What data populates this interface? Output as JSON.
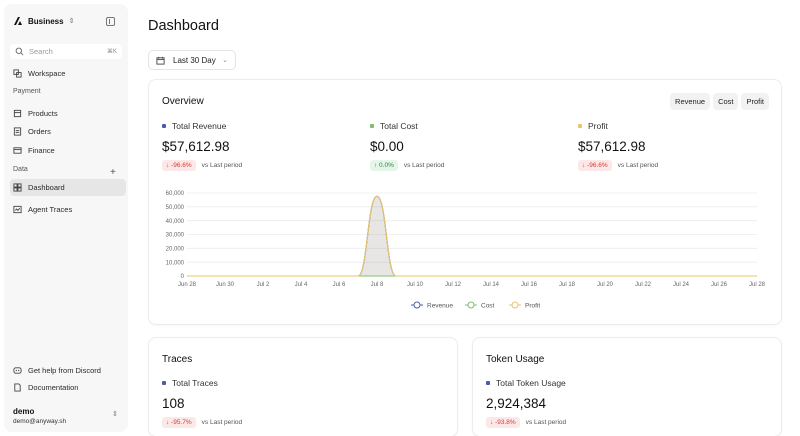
{
  "sidebar": {
    "brand": "Business",
    "search_placeholder": "Search",
    "search_shortcut": "⌘K",
    "workspace": "Workspace",
    "payment_label": "Payment",
    "products": "Products",
    "orders": "Orders",
    "finance": "Finance",
    "data_label": "Data",
    "dashboard": "Dashboard",
    "agent_traces": "Agent Traces",
    "help": "Get help from Discord",
    "docs": "Documentation",
    "user_name": "demo",
    "user_email": "demo@anyway.sh"
  },
  "page": {
    "title": "Dashboard",
    "date_range": "Last 30 Day"
  },
  "overview": {
    "title": "Overview",
    "toggles": [
      "Revenue",
      "Cost",
      "Profit"
    ],
    "metrics": [
      {
        "label": "Total Revenue",
        "value": "$57,612.98",
        "delta": "↓ -96.6%",
        "compare": "vs Last period",
        "color": "#4a5bb0",
        "trend": "down"
      },
      {
        "label": "Total Cost",
        "value": "$0.00",
        "delta": "↑ 0.0%",
        "compare": "vs Last period",
        "color": "#7fbf6a",
        "trend": "up"
      },
      {
        "label": "Profit",
        "value": "$57,612.98",
        "delta": "↓ -96.6%",
        "compare": "vs Last period",
        "color": "#e9c46a",
        "trend": "down"
      }
    ]
  },
  "chart_data": {
    "type": "area",
    "x": [
      "Jun 28",
      "Jun 29",
      "Jun 30",
      "Jul 1",
      "Jul 2",
      "Jul 3",
      "Jul 4",
      "Jul 5",
      "Jul 6",
      "Jul 7",
      "Jul 8",
      "Jul 9",
      "Jul 10",
      "Jul 11",
      "Jul 12",
      "Jul 13",
      "Jul 14",
      "Jul 15",
      "Jul 16",
      "Jul 17",
      "Jul 18",
      "Jul 19",
      "Jul 20",
      "Jul 21",
      "Jul 22",
      "Jul 23",
      "Jul 24",
      "Jul 25",
      "Jul 26",
      "Jul 27",
      "Jul 28"
    ],
    "x_tick_labels": [
      "Jun 28",
      "Jun 30",
      "Jul 2",
      "Jul 4",
      "Jul 6",
      "Jul 8",
      "Jul 10",
      "Jul 12",
      "Jul 14",
      "Jul 16",
      "Jul 18",
      "Jul 20",
      "Jul 22",
      "Jul 24",
      "Jul 26",
      "Jul 28"
    ],
    "y_ticks": [
      0,
      10000,
      20000,
      30000,
      40000,
      50000,
      60000
    ],
    "y_tick_labels": [
      "0",
      "10,000",
      "20,000",
      "30,000",
      "40,000",
      "50,000",
      "60,000"
    ],
    "ylim": [
      0,
      60000
    ],
    "grid": true,
    "legend_position": "bottom",
    "series": [
      {
        "name": "Revenue",
        "color": "#4a5bb0",
        "values": [
          0,
          0,
          0,
          0,
          0,
          0,
          0,
          0,
          0,
          0,
          57613,
          0,
          0,
          0,
          0,
          0,
          0,
          0,
          0,
          0,
          0,
          0,
          0,
          0,
          0,
          0,
          0,
          0,
          0,
          0,
          0
        ]
      },
      {
        "name": "Cost",
        "color": "#7fbf6a",
        "values": [
          0,
          0,
          0,
          0,
          0,
          0,
          0,
          0,
          0,
          0,
          0,
          0,
          0,
          0,
          0,
          0,
          0,
          0,
          0,
          0,
          0,
          0,
          0,
          0,
          0,
          0,
          0,
          0,
          0,
          0,
          0
        ]
      },
      {
        "name": "Profit",
        "color": "#e9c46a",
        "values": [
          0,
          0,
          0,
          0,
          0,
          0,
          0,
          0,
          0,
          0,
          57613,
          0,
          0,
          0,
          0,
          0,
          0,
          0,
          0,
          0,
          0,
          0,
          0,
          0,
          0,
          0,
          0,
          0,
          0,
          0,
          0
        ]
      }
    ]
  },
  "traces": {
    "title": "Traces",
    "label": "Total Traces",
    "value": "108",
    "delta": "↓ -95.7%",
    "compare": "vs Last period",
    "color": "#4a5bb0"
  },
  "tokens": {
    "title": "Token Usage",
    "label": "Total Token Usage",
    "value": "2,924,384",
    "delta": "↓ -93.8%",
    "compare": "vs Last period",
    "color": "#4a5bb0"
  }
}
